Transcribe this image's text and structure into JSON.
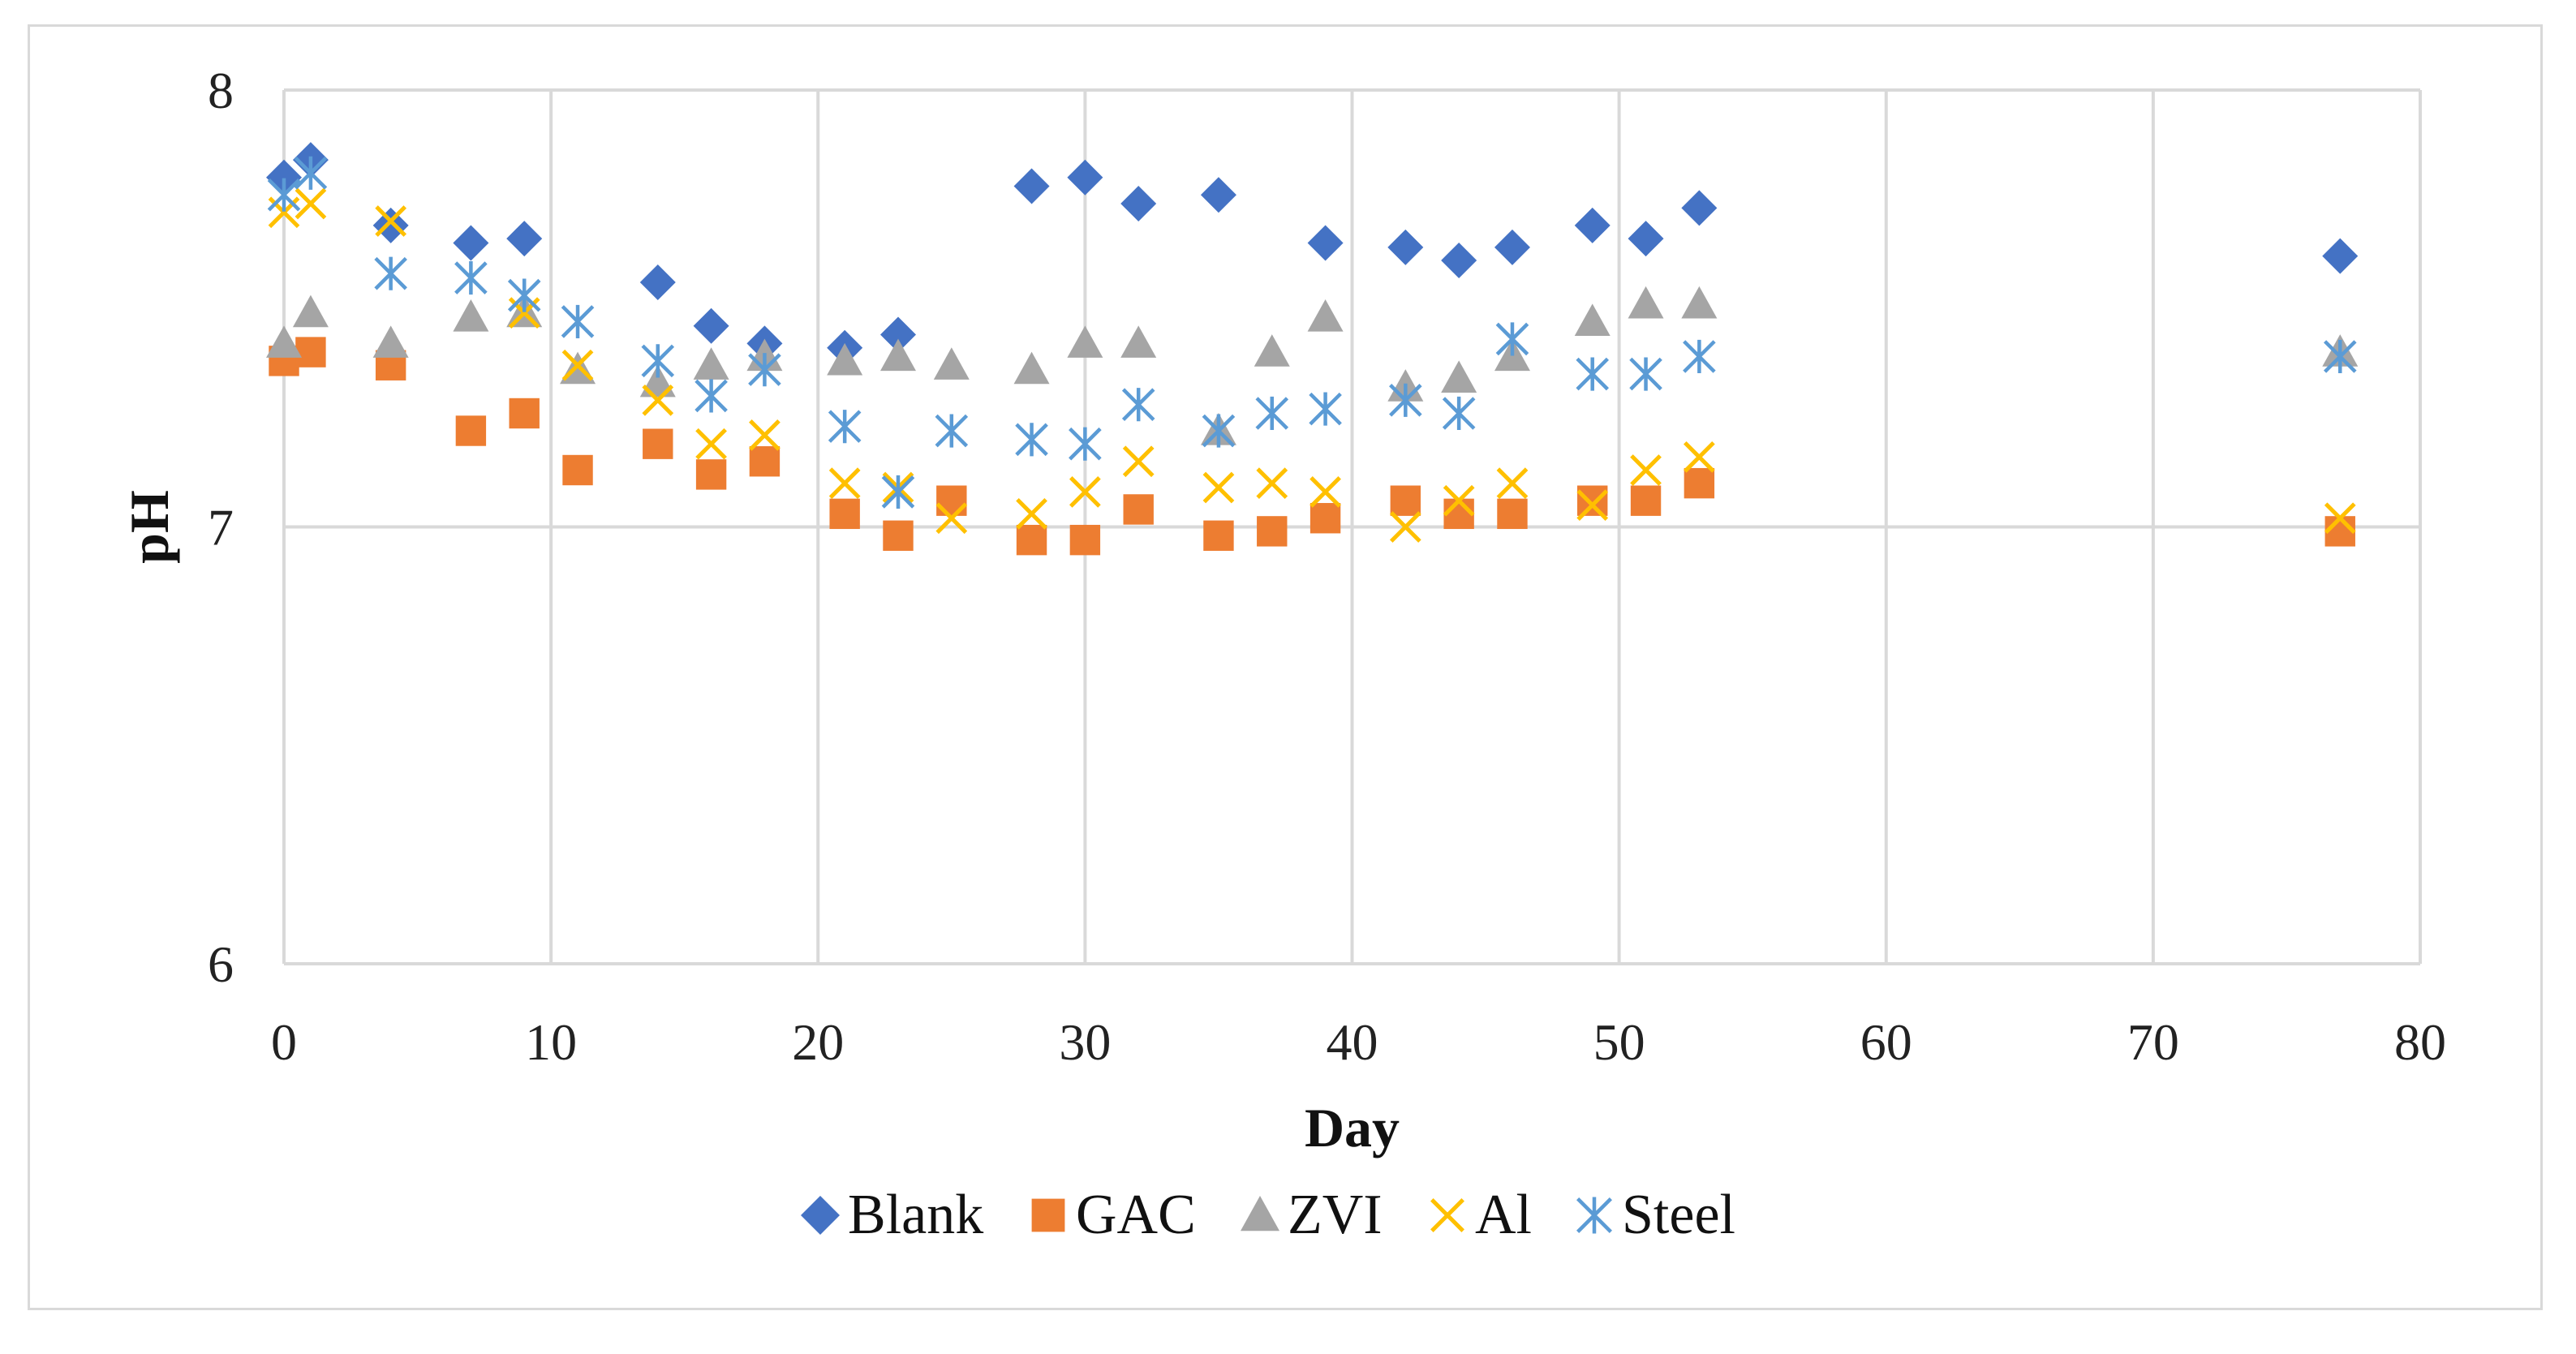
{
  "chart_data": {
    "type": "scatter",
    "title": "",
    "xlabel": "Day",
    "ylabel": "pH",
    "xlim": [
      0,
      80
    ],
    "ylim": [
      6,
      8
    ],
    "xticks": [
      "0",
      "10",
      "20",
      "30",
      "40",
      "50",
      "60",
      "70",
      "80"
    ],
    "yticks": [
      "6",
      "7",
      "8"
    ],
    "grid": true,
    "legend_position": "bottom",
    "series": [
      {
        "name": "Blank",
        "marker": "diamond",
        "color": "#4472C4",
        "points": [
          [
            0,
            7.8
          ],
          [
            1,
            7.84
          ],
          [
            4,
            7.69
          ],
          [
            7,
            7.65
          ],
          [
            9,
            7.66
          ],
          [
            14,
            7.56
          ],
          [
            16,
            7.46
          ],
          [
            18,
            7.42
          ],
          [
            21,
            7.41
          ],
          [
            23,
            7.44
          ],
          [
            28,
            7.78
          ],
          [
            30,
            7.8
          ],
          [
            32,
            7.74
          ],
          [
            35,
            7.76
          ],
          [
            39,
            7.65
          ],
          [
            42,
            7.64
          ],
          [
            44,
            7.61
          ],
          [
            46,
            7.64
          ],
          [
            49,
            7.69
          ],
          [
            51,
            7.66
          ],
          [
            53,
            7.73
          ],
          [
            77,
            7.62
          ]
        ]
      },
      {
        "name": "GAC",
        "marker": "square",
        "color": "#ED7D31",
        "points": [
          [
            0,
            7.38
          ],
          [
            1,
            7.4
          ],
          [
            4,
            7.37
          ],
          [
            7,
            7.22
          ],
          [
            9,
            7.26
          ],
          [
            11,
            7.13
          ],
          [
            14,
            7.19
          ],
          [
            16,
            7.12
          ],
          [
            18,
            7.15
          ],
          [
            21,
            7.03
          ],
          [
            23,
            6.98
          ],
          [
            25,
            7.06
          ],
          [
            28,
            6.97
          ],
          [
            30,
            6.97
          ],
          [
            32,
            7.04
          ],
          [
            35,
            6.98
          ],
          [
            37,
            6.99
          ],
          [
            39,
            7.02
          ],
          [
            42,
            7.06
          ],
          [
            44,
            7.03
          ],
          [
            46,
            7.03
          ],
          [
            49,
            7.06
          ],
          [
            51,
            7.06
          ],
          [
            53,
            7.1
          ],
          [
            77,
            6.99
          ]
        ]
      },
      {
        "name": "ZVI",
        "marker": "triangle",
        "color": "#A5A5A5",
        "points": [
          [
            0,
            7.42
          ],
          [
            1,
            7.49
          ],
          [
            4,
            7.42
          ],
          [
            7,
            7.48
          ],
          [
            9,
            7.49
          ],
          [
            11,
            7.36
          ],
          [
            14,
            7.33
          ],
          [
            16,
            7.37
          ],
          [
            18,
            7.39
          ],
          [
            21,
            7.38
          ],
          [
            23,
            7.39
          ],
          [
            25,
            7.37
          ],
          [
            28,
            7.36
          ],
          [
            30,
            7.42
          ],
          [
            32,
            7.42
          ],
          [
            35,
            7.22
          ],
          [
            37,
            7.4
          ],
          [
            39,
            7.48
          ],
          [
            42,
            7.32
          ],
          [
            44,
            7.34
          ],
          [
            46,
            7.39
          ],
          [
            49,
            7.47
          ],
          [
            51,
            7.51
          ],
          [
            53,
            7.51
          ],
          [
            77,
            7.4
          ]
        ]
      },
      {
        "name": "Al",
        "marker": "x",
        "color": "#FFC000",
        "points": [
          [
            0,
            7.72
          ],
          [
            1,
            7.74
          ],
          [
            4,
            7.7
          ],
          [
            9,
            7.49
          ],
          [
            11,
            7.37
          ],
          [
            14,
            7.29
          ],
          [
            16,
            7.19
          ],
          [
            18,
            7.21
          ],
          [
            21,
            7.1
          ],
          [
            23,
            7.09
          ],
          [
            25,
            7.02
          ],
          [
            28,
            7.03
          ],
          [
            30,
            7.08
          ],
          [
            32,
            7.15
          ],
          [
            35,
            7.09
          ],
          [
            37,
            7.1
          ],
          [
            39,
            7.08
          ],
          [
            42,
            7.0
          ],
          [
            44,
            7.06
          ],
          [
            46,
            7.1
          ],
          [
            49,
            7.05
          ],
          [
            51,
            7.13
          ],
          [
            53,
            7.16
          ],
          [
            77,
            7.02
          ]
        ]
      },
      {
        "name": "Steel",
        "marker": "asterisk",
        "color": "#5B9BD5",
        "points": [
          [
            0,
            7.76
          ],
          [
            1,
            7.81
          ],
          [
            4,
            7.58
          ],
          [
            7,
            7.57
          ],
          [
            9,
            7.53
          ],
          [
            11,
            7.47
          ],
          [
            14,
            7.38
          ],
          [
            16,
            7.3
          ],
          [
            18,
            7.36
          ],
          [
            21,
            7.23
          ],
          [
            23,
            7.08
          ],
          [
            25,
            7.22
          ],
          [
            28,
            7.2
          ],
          [
            30,
            7.19
          ],
          [
            32,
            7.28
          ],
          [
            35,
            7.22
          ],
          [
            37,
            7.26
          ],
          [
            39,
            7.27
          ],
          [
            42,
            7.29
          ],
          [
            44,
            7.26
          ],
          [
            46,
            7.43
          ],
          [
            49,
            7.35
          ],
          [
            51,
            7.35
          ],
          [
            53,
            7.39
          ],
          [
            77,
            7.39
          ]
        ]
      }
    ]
  }
}
